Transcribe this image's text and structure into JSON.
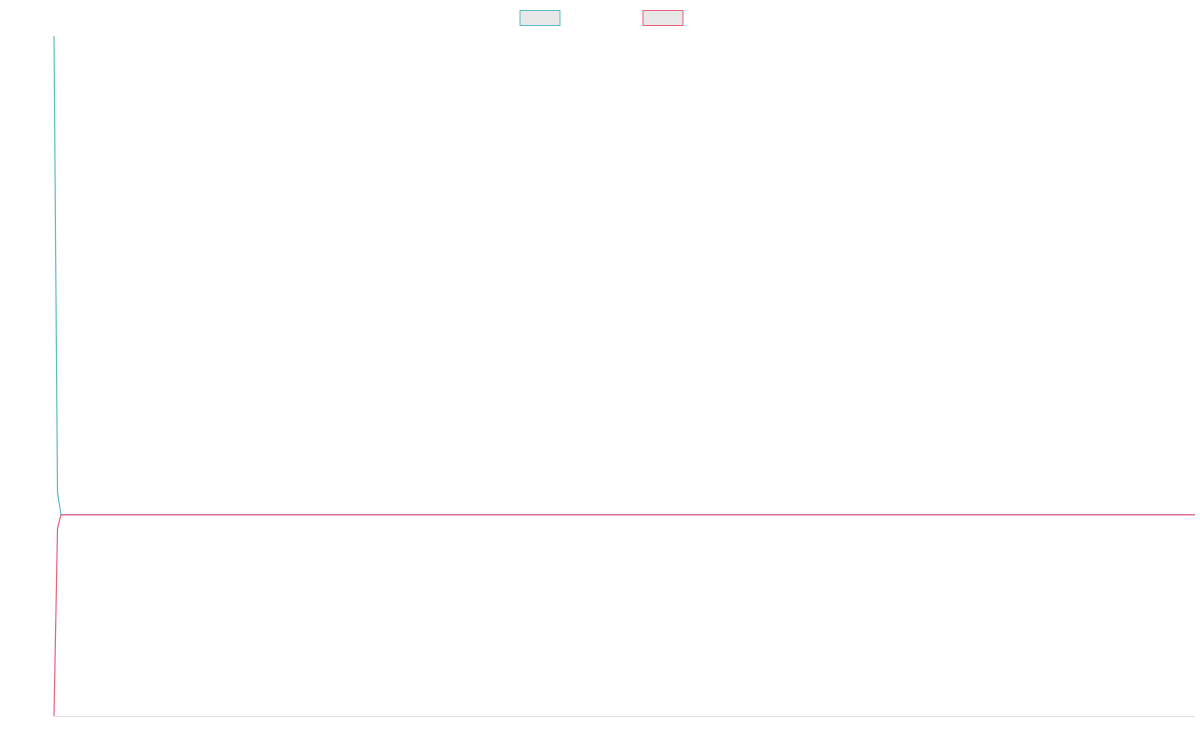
{
  "chart_data": {
    "type": "line",
    "x": [
      0,
      1,
      2,
      326
    ],
    "series": [
      {
        "color": "#5bbcc4",
        "values": [
          100,
          32.9,
          29.6,
          29.6
        ]
      },
      {
        "color": "#e8607e",
        "values": [
          0,
          27.6,
          29.6,
          29.6
        ]
      }
    ],
    "xlim": [
      0,
      326
    ],
    "ylim": [
      0,
      100
    ],
    "legend": "top"
  }
}
